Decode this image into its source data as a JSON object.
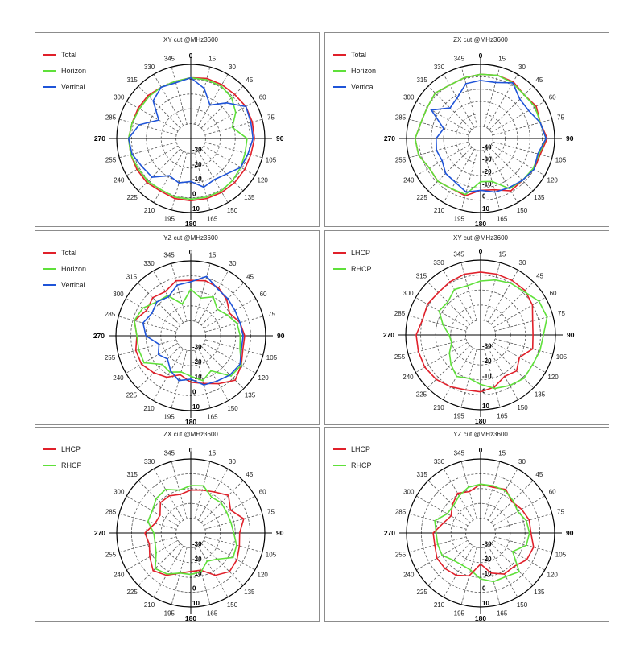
{
  "colors": {
    "total": "#e0202a",
    "horizon": "#5fe03a",
    "vertical": "#1f54d8",
    "lhcp": "#e0202a",
    "rhcp": "#5fe03a"
  },
  "angle_labels": [
    "0",
    "15",
    "30",
    "45",
    "60",
    "75",
    "90",
    "105",
    "120",
    "135",
    "150",
    "165",
    "180",
    "195",
    "210",
    "225",
    "240",
    "255",
    "270",
    "285",
    "300",
    "315",
    "330",
    "345"
  ],
  "chart_data": [
    {
      "type": "line",
      "title": "XY cut @MHz3600",
      "projection": "polar",
      "radial_ticks": [
        "10",
        "0",
        "-10",
        "-20",
        "-30"
      ],
      "angles_deg": [
        0,
        15,
        30,
        45,
        60,
        75,
        90,
        105,
        120,
        135,
        150,
        165,
        180,
        195,
        210,
        225,
        240,
        255,
        270,
        285,
        300,
        315,
        330,
        345
      ],
      "series": [
        {
          "name": "Total",
          "color": "#e0202a",
          "values": [
            1,
            2,
            2,
            2,
            3,
            3,
            3,
            2,
            2,
            2,
            2,
            2,
            2,
            2,
            1,
            2,
            2,
            2,
            2,
            1,
            1,
            1,
            0,
            0
          ]
        },
        {
          "name": "Horizon",
          "color": "#5fe03a",
          "values": [
            1,
            1,
            1,
            -1,
            -5,
            -11,
            -2,
            -2,
            -1,
            0,
            1,
            1,
            1,
            1,
            0,
            1,
            1,
            2,
            2,
            1,
            0,
            0,
            0,
            0
          ]
        },
        {
          "name": "Vertical",
          "color": "#1f54d8",
          "values": [
            1,
            -5,
            -14,
            -6,
            3,
            2,
            2,
            0,
            -1,
            -6,
            -8,
            -6,
            -11,
            -9,
            -11,
            -3,
            -2,
            1,
            2,
            -4,
            -15,
            -4,
            0,
            -1
          ]
        }
      ]
    },
    {
      "type": "line",
      "title": "ZX cut @MHz3600",
      "projection": "polar",
      "radial_ticks": [
        "10",
        "0",
        "-10",
        "-20",
        "-30",
        "-40"
      ],
      "angles_deg": [
        0,
        15,
        30,
        45,
        60,
        75,
        90,
        105,
        120,
        135,
        150,
        165,
        180,
        195,
        210,
        225,
        240,
        255,
        270,
        285,
        300,
        315,
        330,
        345
      ],
      "series": [
        {
          "name": "Total",
          "color": "#e0202a",
          "values": [
            2,
            3,
            3,
            0,
            2,
            0,
            4,
            0,
            0,
            -2,
            -1,
            -7,
            -8,
            -2,
            -3,
            -1,
            -2,
            2,
            3,
            0,
            0,
            2,
            0,
            1
          ]
        },
        {
          "name": "Horizon",
          "color": "#5fe03a",
          "values": [
            2,
            3,
            2,
            0,
            1,
            0,
            3,
            -1,
            -1,
            -2,
            -3,
            -14,
            -15,
            -3,
            -3,
            -1,
            -2,
            2,
            3,
            0,
            0,
            2,
            0,
            1
          ]
        },
        {
          "name": "Vertical",
          "color": "#1f54d8",
          "values": [
            -3,
            -3,
            2,
            -5,
            -5,
            0,
            3,
            -2,
            0,
            -2,
            -4,
            -5,
            -8,
            -5,
            -9,
            -10,
            -14,
            -13,
            -14,
            -19,
            -4,
            -15,
            -12,
            -4
          ]
        }
      ]
    },
    {
      "type": "line",
      "title": "YZ cut @MHz3600",
      "projection": "polar",
      "radial_ticks": [
        "10",
        "0",
        "-10",
        "-20",
        "-30"
      ],
      "angles_deg": [
        0,
        15,
        30,
        45,
        60,
        75,
        90,
        105,
        120,
        135,
        150,
        165,
        180,
        195,
        210,
        225,
        240,
        255,
        270,
        285,
        300,
        315,
        330,
        345
      ],
      "series": [
        {
          "name": "Total",
          "color": "#e0202a",
          "values": [
            -3,
            -2,
            -3,
            -6,
            -10,
            -6,
            -4,
            -4,
            -1,
            2,
            -3,
            -7,
            -9,
            -13,
            -8,
            -5,
            -2,
            -2,
            -4,
            -1,
            -6,
            -4,
            -6,
            -2
          ]
        },
        {
          "name": "Horizon",
          "color": "#5fe03a",
          "values": [
            -9,
            -14,
            -10,
            -15,
            -12,
            -8,
            -7,
            -6,
            -1,
            -2,
            -13,
            -9,
            -13,
            -15,
            -12,
            -13,
            -4,
            -4,
            -4,
            -1,
            -3,
            -8,
            -9,
            -18
          ]
        },
        {
          "name": "Vertical",
          "color": "#1f54d8",
          "values": [
            -4,
            1,
            -4,
            -5,
            -6,
            -6,
            -5,
            -5,
            -2,
            -3,
            -5,
            -6,
            -11,
            -9,
            -13,
            -18,
            -15,
            -18,
            -10,
            -7,
            -10,
            -8,
            -10,
            -5
          ]
        }
      ]
    },
    {
      "type": "line",
      "title": "XY cut @MHz3600",
      "projection": "polar",
      "radial_ticks": [
        "10",
        "0",
        "-10",
        "-20",
        "-30"
      ],
      "angles_deg": [
        0,
        15,
        30,
        45,
        60,
        75,
        90,
        105,
        120,
        135,
        150,
        165,
        180,
        195,
        210,
        225,
        240,
        255,
        270,
        285,
        300,
        315,
        330,
        345
      ],
      "series": [
        {
          "name": "LHCP",
          "color": "#e0202a",
          "values": [
            2,
            2,
            2,
            2,
            0,
            -4,
            -5,
            -4,
            -10,
            -6,
            -8,
            -4,
            -2,
            -2,
            0,
            2,
            3,
            3,
            3,
            0,
            1,
            0,
            1,
            2
          ]
        },
        {
          "name": "RHCP",
          "color": "#5fe03a",
          "values": [
            -4,
            -2,
            0,
            1,
            5,
            6,
            2,
            1,
            0,
            1,
            -1,
            -3,
            -7,
            -10,
            -8,
            -12,
            -16,
            -20,
            -19,
            -14,
            -8,
            -9,
            -5,
            -6
          ]
        }
      ]
    },
    {
      "type": "line",
      "title": "ZX cut @MHz3600",
      "projection": "polar",
      "radial_ticks": [
        "10",
        "0",
        "-10",
        "-20",
        "-30"
      ],
      "angles_deg": [
        0,
        15,
        30,
        45,
        60,
        75,
        90,
        105,
        120,
        135,
        150,
        165,
        180,
        195,
        210,
        225,
        240,
        255,
        270,
        285,
        300,
        315,
        330,
        345
      ],
      "series": [
        {
          "name": "LHCP",
          "color": "#e0202a",
          "values": [
            -11,
            -10,
            -8,
            -4,
            -9,
            -3,
            -7,
            -6,
            -4,
            -3,
            -7,
            -14,
            -14,
            -12,
            -7,
            -4,
            -8,
            -11,
            -9,
            -15,
            -16,
            -11,
            -11,
            -13
          ]
        },
        {
          "name": "RHCP",
          "color": "#5fe03a",
          "values": [
            -8,
            -7,
            -12,
            -11,
            -12,
            -12,
            -11,
            -8,
            -7,
            -15,
            -18,
            -13,
            -12,
            -12,
            -8,
            -6,
            -13,
            -15,
            -15,
            -10,
            -10,
            -7,
            -6,
            -10
          ]
        }
      ]
    },
    {
      "type": "line",
      "title": "YZ cut @MHz3600",
      "projection": "polar",
      "radial_ticks": [
        "10",
        "0",
        "-10",
        "-20",
        "-30"
      ],
      "angles_deg": [
        0,
        15,
        30,
        45,
        60,
        75,
        90,
        105,
        120,
        135,
        150,
        165,
        180,
        195,
        210,
        225,
        240,
        255,
        270,
        285,
        300,
        315,
        330,
        345
      ],
      "series": [
        {
          "name": "LHCP",
          "color": "#e0202a",
          "values": [
            -7,
            -8,
            -6,
            -10,
            -8,
            -6,
            -6,
            -3,
            -4,
            -8,
            -8,
            -12,
            -19,
            -10,
            -7,
            -6,
            -6,
            -8,
            -8,
            -14,
            -17,
            -13,
            -9,
            -11
          ]
        },
        {
          "name": "RHCP",
          "color": "#5fe03a",
          "values": [
            -7,
            -7,
            -7,
            -9,
            -11,
            -8,
            -7,
            -8,
            -15,
            -3,
            -6,
            -6,
            -9,
            -14,
            -15,
            -14,
            -10,
            -10,
            -10,
            -8,
            -14,
            -14,
            -11,
            -8
          ]
        }
      ]
    }
  ]
}
